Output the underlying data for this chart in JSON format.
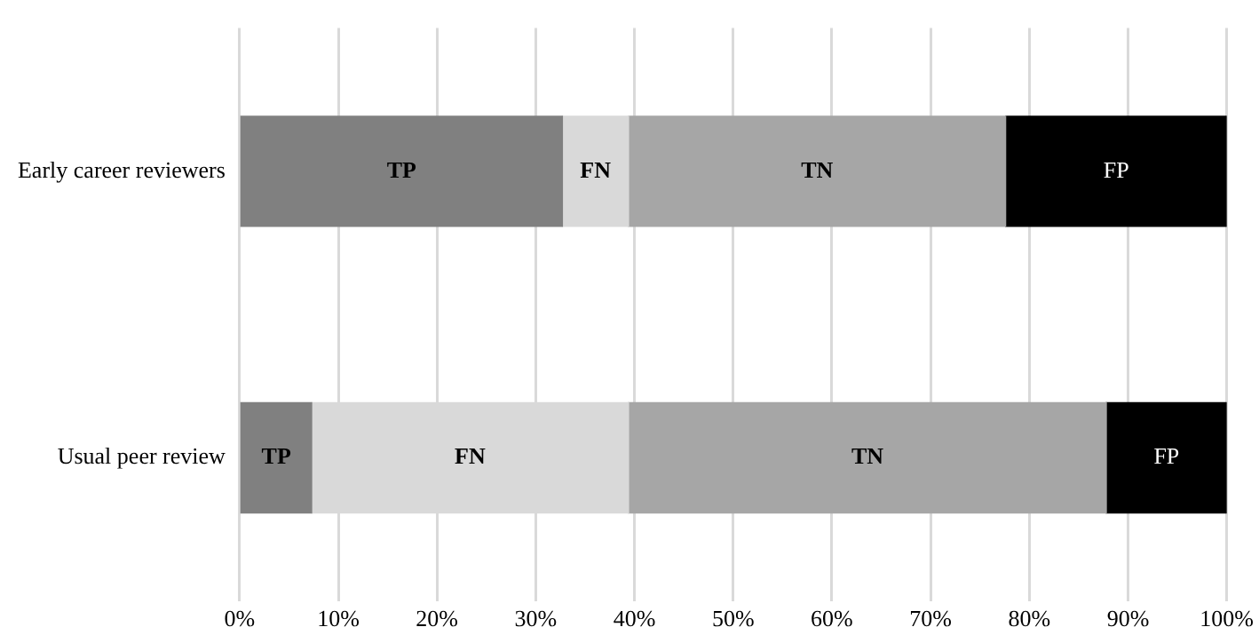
{
  "chart_data": {
    "type": "bar",
    "orientation": "horizontal",
    "stacked": true,
    "categories": [
      "Early career reviewers",
      "Usual peer review"
    ],
    "series": [
      {
        "name": "TP",
        "color": "#808080",
        "values": [
          32.7,
          7.3
        ]
      },
      {
        "name": "FN",
        "color": "#d9d9d9",
        "values": [
          6.7,
          32.1
        ]
      },
      {
        "name": "TN",
        "color": "#a6a6a6",
        "values": [
          38.2,
          48.4
        ]
      },
      {
        "name": "FP",
        "color": "#000000",
        "values": [
          22.4,
          12.2
        ]
      }
    ],
    "xlim": [
      0,
      100
    ],
    "xticks": [
      {
        "value": 0,
        "label": "0%"
      },
      {
        "value": 10,
        "label": "10%"
      },
      {
        "value": 20,
        "label": "20%"
      },
      {
        "value": 30,
        "label": "30%"
      },
      {
        "value": 40,
        "label": "40%"
      },
      {
        "value": 50,
        "label": "50%"
      },
      {
        "value": 60,
        "label": "60%"
      },
      {
        "value": 70,
        "label": "70%"
      },
      {
        "value": 80,
        "label": "80%"
      },
      {
        "value": 90,
        "label": "90%"
      },
      {
        "value": 100,
        "label": "100%"
      }
    ],
    "grid": "x",
    "legend": false
  }
}
